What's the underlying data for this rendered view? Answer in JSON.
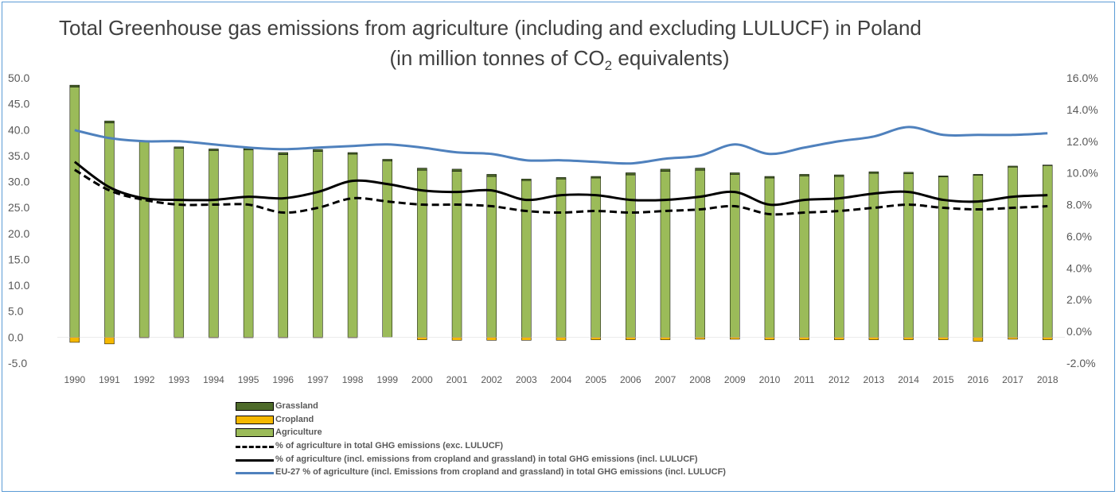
{
  "chart_data": {
    "type": "bar",
    "title": "Total Greenhouse gas emissions from agriculture (including and excluding LULUCF) in Poland",
    "subtitle_pre": "(in million tonnes of CO",
    "subtitle_sub": "2",
    "subtitle_post": " equivalents)",
    "categories": [
      "1990",
      "1991",
      "1992",
      "1993",
      "1994",
      "1995",
      "1996",
      "1997",
      "1998",
      "1999",
      "2000",
      "2001",
      "2002",
      "2003",
      "2004",
      "2005",
      "2006",
      "2007",
      "2008",
      "2009",
      "2010",
      "2011",
      "2012",
      "2013",
      "2014",
      "2015",
      "2016",
      "2017",
      "2018"
    ],
    "y_left": {
      "min": -5,
      "max": 50,
      "step": 5,
      "ticks": [
        "-5.0",
        "0.0",
        "5.0",
        "10.0",
        "15.0",
        "20.0",
        "25.0",
        "30.0",
        "35.0",
        "40.0",
        "45.0",
        "50.0"
      ]
    },
    "y_right": {
      "min": -2,
      "max": 16,
      "step": 2,
      "ticks": [
        "-2.0%",
        "0.0%",
        "2.0%",
        "4.0%",
        "6.0%",
        "8.0%",
        "10.0%",
        "12.0%",
        "14.0%",
        "16.0%"
      ]
    },
    "bar_series": [
      {
        "name": "Grassland",
        "color": "#4e6b2a",
        "values": [
          0.4,
          0.4,
          0.2,
          0.3,
          0.3,
          0.4,
          0.4,
          0.4,
          0.3,
          0.3,
          0.4,
          0.4,
          0.4,
          0.3,
          0.3,
          0.3,
          0.4,
          0.4,
          0.4,
          0.3,
          0.3,
          0.3,
          0.3,
          0.3,
          0.3,
          0.2,
          0.2,
          0.2,
          0.1
        ]
      },
      {
        "name": "Cropland",
        "color": "#f5b800",
        "values": [
          -1.0,
          -1.3,
          -0.1,
          -0.1,
          -0.1,
          -0.1,
          -0.1,
          -0.1,
          -0.1,
          0,
          -0.5,
          -0.6,
          -0.6,
          -0.6,
          -0.6,
          -0.5,
          -0.5,
          -0.5,
          -0.4,
          -0.4,
          -0.5,
          -0.5,
          -0.5,
          -0.5,
          -0.5,
          -0.5,
          -0.8,
          -0.4,
          -0.5
        ]
      },
      {
        "name": "Agriculture",
        "color": "#9bbb59",
        "values": [
          48.2,
          41.3,
          37.7,
          36.4,
          36.0,
          36.1,
          35.2,
          35.8,
          35.3,
          34.0,
          32.2,
          32.0,
          31.0,
          30.2,
          30.5,
          30.7,
          31.3,
          32.0,
          32.2,
          31.4,
          30.7,
          31.1,
          31.0,
          31.6,
          31.5,
          30.9,
          31.2,
          32.8,
          33.1
        ]
      }
    ],
    "line_series": [
      {
        "name": "% of agriculture in total GHG emissions (exc. LULUCF)",
        "axis": "right",
        "color": "#000000",
        "dash": true,
        "values": [
          10.2,
          8.9,
          8.3,
          8.0,
          8.0,
          8.0,
          7.5,
          7.8,
          8.4,
          8.2,
          8.0,
          8.0,
          7.9,
          7.6,
          7.5,
          7.6,
          7.5,
          7.6,
          7.7,
          7.9,
          7.4,
          7.5,
          7.6,
          7.8,
          8.0,
          7.8,
          7.7,
          7.8,
          7.9
        ]
      },
      {
        "name": "% of agriculture (incl. emissions from cropland and grassland) in total GHG emissions (incl. LULUCF)",
        "axis": "right",
        "color": "#000000",
        "dash": false,
        "values": [
          10.7,
          9.1,
          8.4,
          8.3,
          8.3,
          8.5,
          8.4,
          8.8,
          9.5,
          9.3,
          8.9,
          8.8,
          8.9,
          8.3,
          8.6,
          8.6,
          8.3,
          8.3,
          8.5,
          8.8,
          8.0,
          8.3,
          8.4,
          8.7,
          8.8,
          8.3,
          8.2,
          8.5,
          8.6
        ]
      },
      {
        "name": "EU-27 % of agriculture (incl. Emissions from cropland and grassland) in total GHG emissions (incl. LULUCF)",
        "axis": "right",
        "color": "#4f81bd",
        "dash": false,
        "values": [
          12.7,
          12.2,
          12.0,
          12.0,
          11.8,
          11.6,
          11.5,
          11.6,
          11.7,
          11.8,
          11.6,
          11.3,
          11.2,
          10.8,
          10.8,
          10.7,
          10.6,
          10.9,
          11.1,
          11.8,
          11.2,
          11.6,
          12.0,
          12.3,
          12.9,
          12.4,
          12.4,
          12.4,
          12.5
        ]
      }
    ],
    "legend_order": [
      "Grassland",
      "Cropland",
      "Agriculture",
      "% of agriculture in total GHG emissions (exc. LULUCF)",
      "% of agriculture (incl. emissions from cropland and grassland) in total GHG emissions (incl. LULUCF)",
      "EU-27 % of agriculture (incl. Emissions from cropland and grassland) in total GHG emissions (incl. LULUCF)"
    ],
    "legend_placement": "bottom",
    "grid": false
  }
}
